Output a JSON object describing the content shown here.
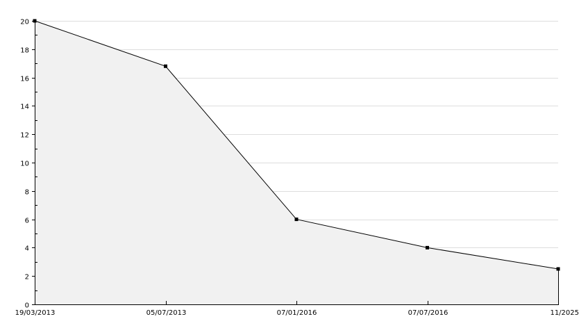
{
  "chart_data": {
    "type": "area",
    "title": "",
    "xlabel": "",
    "ylabel": "",
    "categories": [
      "19/03/2013",
      "05/07/2013",
      "07/01/2016",
      "07/07/2016",
      "11/2025"
    ],
    "values": [
      20,
      16.8,
      6,
      4,
      2.5
    ],
    "ylim": [
      0,
      20
    ],
    "yticks": [
      0,
      2,
      4,
      6,
      8,
      10,
      12,
      14,
      16,
      18,
      20
    ],
    "grid": true,
    "legend": "none",
    "colors": {
      "fill": "#f1f1f1",
      "line": "#000000",
      "grid": "#dddddd",
      "marker": "#000000"
    }
  }
}
